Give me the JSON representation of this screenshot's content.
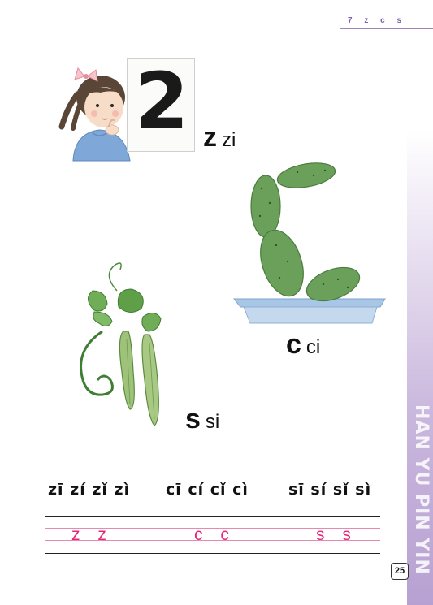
{
  "header": {
    "lesson_number": "7",
    "lesson_letters": [
      "z",
      "c",
      "s"
    ]
  },
  "side_banner": {
    "text": "HAN YU PIN YIN"
  },
  "illustrations": {
    "girl_card": {
      "card_number": "2"
    },
    "cactus": {},
    "loofah": {}
  },
  "letters": [
    {
      "letter": "z",
      "syllable": "zi"
    },
    {
      "letter": "c",
      "syllable": "ci"
    },
    {
      "letter": "s",
      "syllable": "si"
    }
  ],
  "tones": {
    "zi": "zī zí zǐ zì",
    "ci": "cī cí cǐ cì",
    "si": "sī sí sǐ sì"
  },
  "writing_practice": {
    "z": "z z",
    "c": "c c",
    "s": "s s"
  },
  "page_number": "25",
  "colors": {
    "accent_purple": "#7b5fa8",
    "practice_pink": "#e0297c",
    "band_purple": "#b7a1d2"
  }
}
